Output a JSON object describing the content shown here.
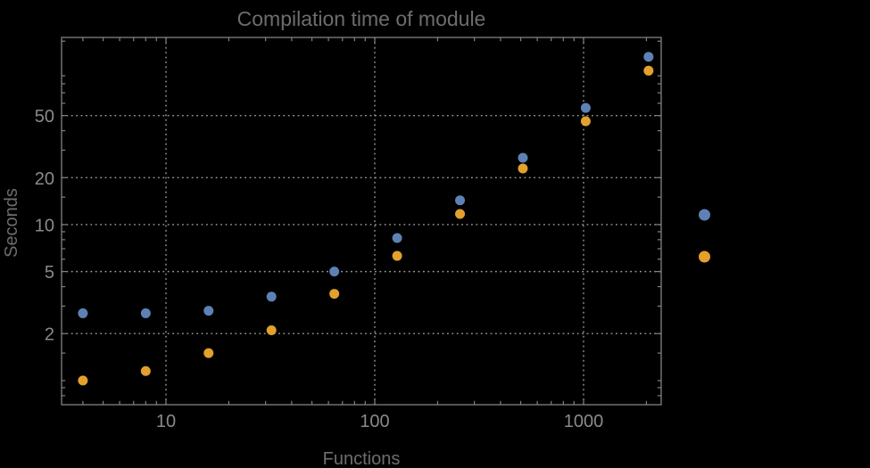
{
  "chart_data": {
    "type": "scatter",
    "title": "Compilation time of module",
    "xlabel": "Functions",
    "ylabel": "Seconds",
    "x_scale": "log",
    "y_scale": "log",
    "xlim": [
      3.162,
      2354
    ],
    "ylim": [
      0.7,
      158.5
    ],
    "grid": true,
    "legend_position": "right-of-frame, labels not visible",
    "x": [
      4,
      8,
      16,
      32,
      64,
      128,
      256,
      512,
      1024,
      2048
    ],
    "series": [
      {
        "name": "blue",
        "color": "#5e81b5",
        "values": [
          2.7,
          2.7,
          2.8,
          3.45,
          5.0,
          8.2,
          14.3,
          26.8,
          56,
          119
        ]
      },
      {
        "name": "orange",
        "color": "#e3a02d",
        "values": [
          1.0,
          1.15,
          1.5,
          2.1,
          3.6,
          6.3,
          11.7,
          22.9,
          46,
          97
        ]
      }
    ],
    "x_ticks": {
      "labeled": [
        {
          "value": 10,
          "label": "10"
        },
        {
          "value": 100,
          "label": "100"
        },
        {
          "value": 1000,
          "label": "1000"
        }
      ],
      "minor": [
        4,
        5,
        6,
        7,
        8,
        9,
        20,
        30,
        40,
        50,
        60,
        70,
        80,
        90,
        200,
        300,
        400,
        500,
        600,
        700,
        800,
        900,
        2000
      ]
    },
    "y_ticks": {
      "labeled": [
        {
          "value": 2,
          "label": "2"
        },
        {
          "value": 5,
          "label": "5"
        },
        {
          "value": 10,
          "label": "10"
        },
        {
          "value": 20,
          "label": "20"
        },
        {
          "value": 50,
          "label": "50"
        }
      ],
      "minor": [
        0.8,
        0.9,
        1,
        1.5,
        3,
        4,
        6,
        7,
        8,
        9,
        15,
        30,
        40,
        60,
        70,
        80,
        90,
        150
      ]
    },
    "gridlines": {
      "x": [
        10,
        100,
        1000
      ],
      "y": [
        2,
        5,
        10,
        20,
        50
      ]
    },
    "legend_markers": [
      {
        "name": "blue",
        "color": "#5e81b5"
      },
      {
        "name": "orange",
        "color": "#e3a02d"
      }
    ]
  },
  "colors": {
    "background": "#000000",
    "frame": "#828282",
    "grid": "#9a9a9a",
    "tick_label": "#8a8a8a",
    "title": "#6d6d6d",
    "axis_label": "#6d6d6d"
  }
}
